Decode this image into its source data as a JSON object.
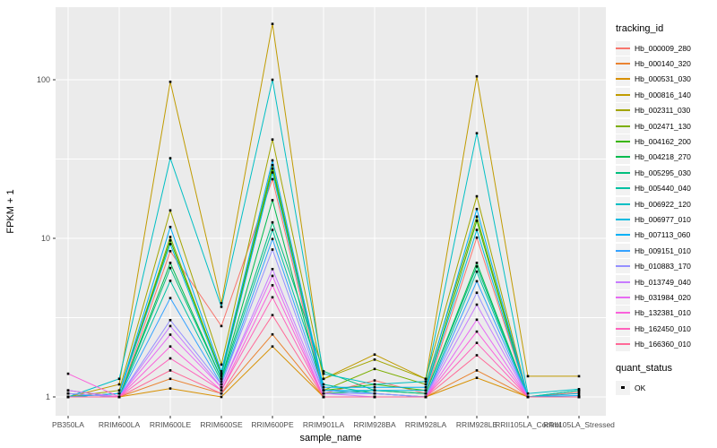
{
  "figure": {
    "background": "#FFFFFF",
    "panel_background": "#EBEBEB",
    "gridline_color": "#FFFFFF",
    "tick_color": "#333333",
    "tick_label_color": "#4D4D4D",
    "text_color": "#000000",
    "key_background": "#F2F2F2"
  },
  "legend": {
    "tracking_title": "tracking_id",
    "quant_title": "quant_status",
    "quant_items": [
      {
        "label": "OK",
        "shape": "filled-square",
        "color": "#000000"
      }
    ]
  },
  "chart_data": {
    "type": "line",
    "title": "",
    "xlabel": "sample_name",
    "ylabel": "FPKM + 1",
    "y_scale": "log10",
    "y_ticks": [
      1,
      10,
      100
    ],
    "y_minor_ticks": [
      3.1623,
      31.623
    ],
    "ylim": [
      0.93,
      290
    ],
    "point_shape": "square",
    "point_color": "#000000",
    "legend_position": "right",
    "grid": true,
    "categories": [
      "PB350LA",
      "RRIM600LA",
      "RRIM600LE",
      "RRIM600SE",
      "RRIM600PE",
      "RRIM901LA",
      "RRIM928BA",
      "RRIM928LA",
      "RRIM928LE",
      "RRII105LA_Control",
      "RRII105LA_Stressed"
    ],
    "series": [
      {
        "name": "Hb_000009_280",
        "color": "#F8766D",
        "values": [
          1.05,
          1.0,
          8.3,
          2.8,
          23.6,
          1.05,
          1.27,
          1.05,
          10.1,
          1.0,
          1.07
        ]
      },
      {
        "name": "Hb_000140_320",
        "color": "#EA8331",
        "values": [
          1.0,
          1.0,
          1.3,
          1.05,
          2.48,
          1.0,
          1.0,
          1.0,
          1.47,
          1.0,
          1.0
        ]
      },
      {
        "name": "Hb_000531_030",
        "color": "#D89000",
        "values": [
          1.0,
          1.0,
          1.13,
          1.0,
          2.08,
          1.0,
          1.0,
          1.0,
          1.32,
          1.0,
          1.0
        ]
      },
      {
        "name": "Hb_000816_140",
        "color": "#C09B00",
        "values": [
          1.0,
          1.2,
          97.0,
          3.9,
          225.0,
          1.3,
          1.85,
          1.3,
          105.0,
          1.35,
          1.35
        ]
      },
      {
        "name": "Hb_002311_030",
        "color": "#A3A500",
        "values": [
          1.0,
          1.1,
          15.0,
          1.6,
          42.0,
          1.3,
          1.72,
          1.3,
          18.4,
          1.0,
          1.0
        ]
      },
      {
        "name": "Hb_002471_130",
        "color": "#7CAE00",
        "values": [
          1.0,
          1.05,
          10.2,
          1.4,
          29.0,
          1.1,
          1.5,
          1.2,
          13.7,
          1.0,
          1.0
        ]
      },
      {
        "name": "Hb_004162_200",
        "color": "#39B600",
        "values": [
          1.0,
          1.05,
          9.7,
          1.4,
          27.5,
          1.1,
          1.2,
          1.1,
          12.9,
          1.0,
          1.0
        ]
      },
      {
        "name": "Hb_004218_270",
        "color": "#00BB4E",
        "values": [
          1.0,
          1.0,
          7.0,
          1.3,
          17.4,
          1.05,
          1.1,
          1.05,
          7.0,
          1.0,
          1.0
        ]
      },
      {
        "name": "Hb_005295_030",
        "color": "#00BF7D",
        "values": [
          1.0,
          1.0,
          6.5,
          1.3,
          12.6,
          1.45,
          1.1,
          1.05,
          6.65,
          1.0,
          1.1
        ]
      },
      {
        "name": "Hb_005440_040",
        "color": "#00C1A3",
        "values": [
          1.1,
          1.0,
          5.4,
          1.25,
          11.3,
          1.2,
          1.05,
          1.0,
          6.16,
          1.0,
          1.1
        ]
      },
      {
        "name": "Hb_006922_120",
        "color": "#00BFC4",
        "values": [
          1.0,
          1.3,
          32.0,
          3.7,
          100.0,
          1.4,
          1.2,
          1.25,
          46.0,
          1.05,
          1.12
        ]
      },
      {
        "name": "Hb_006977_010",
        "color": "#00BAE0",
        "values": [
          1.0,
          1.05,
          9.2,
          1.35,
          26.0,
          1.1,
          1.1,
          1.1,
          11.3,
          1.0,
          1.05
        ]
      },
      {
        "name": "Hb_007113_060",
        "color": "#00B0F6",
        "values": [
          1.0,
          1.05,
          11.8,
          1.45,
          31.0,
          1.15,
          1.15,
          1.15,
          15.3,
          1.0,
          1.02
        ]
      },
      {
        "name": "Hb_009151_010",
        "color": "#35A2FF",
        "values": [
          1.05,
          1.0,
          4.2,
          1.2,
          9.9,
          1.1,
          1.05,
          1.0,
          5.36,
          1.0,
          1.0
        ]
      },
      {
        "name": "Hb_010883_170",
        "color": "#9590FF",
        "values": [
          1.05,
          1.0,
          3.05,
          1.2,
          8.5,
          1.05,
          1.05,
          1.0,
          4.54,
          1.0,
          1.0
        ]
      },
      {
        "name": "Hb_013749_040",
        "color": "#C77CFF",
        "values": [
          1.0,
          1.0,
          2.8,
          1.15,
          6.4,
          1.05,
          1.0,
          1.0,
          3.82,
          1.0,
          1.0
        ]
      },
      {
        "name": "Hb_031984_020",
        "color": "#E76BF3",
        "values": [
          1.1,
          1.0,
          2.47,
          1.15,
          5.8,
          1.0,
          1.0,
          1.0,
          3.07,
          1.0,
          1.0
        ]
      },
      {
        "name": "Hb_132381_010",
        "color": "#FA62DB",
        "values": [
          1.4,
          1.0,
          2.08,
          1.1,
          5.06,
          1.0,
          1.0,
          1.0,
          2.58,
          1.0,
          1.0
        ]
      },
      {
        "name": "Hb_162450_010",
        "color": "#FF62BC",
        "values": [
          1.0,
          1.0,
          1.75,
          1.1,
          4.25,
          1.0,
          1.0,
          1.0,
          2.19,
          1.0,
          1.0
        ]
      },
      {
        "name": "Hb_166360_010",
        "color": "#FF6A98",
        "values": [
          1.0,
          1.0,
          1.47,
          1.05,
          3.28,
          1.0,
          1.0,
          1.0,
          1.83,
          1.0,
          1.0
        ]
      }
    ]
  }
}
